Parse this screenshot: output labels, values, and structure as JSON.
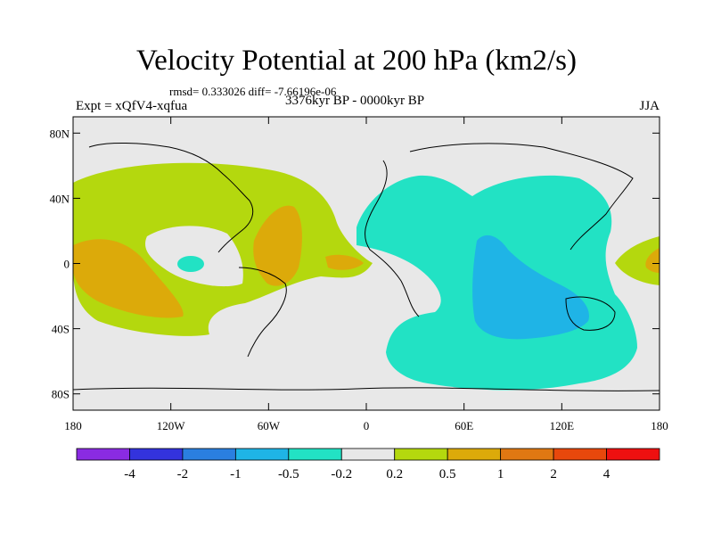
{
  "title": "Velocity Potential at 200 hPa (km2/s)",
  "subtitle_stats": "rmsd= 0.333026 diff= -7.66196e-06",
  "left_label": "Expt = xQfV4-xqfua",
  "center_label": "3376kyr BP - 0000kyr BP",
  "right_label": "JJA",
  "lat_ticks": [
    {
      "label": "80N",
      "lat": 80
    },
    {
      "label": "40N",
      "lat": 40
    },
    {
      "label": "0",
      "lat": 0
    },
    {
      "label": "40S",
      "lat": -40
    },
    {
      "label": "80S",
      "lat": -80
    }
  ],
  "lon_ticks": [
    {
      "label": "180",
      "lon": -180
    },
    {
      "label": "120W",
      "lon": -120
    },
    {
      "label": "60W",
      "lon": -60
    },
    {
      "label": "0",
      "lon": 0
    },
    {
      "label": "60E",
      "lon": 60
    },
    {
      "label": "120E",
      "lon": 120
    },
    {
      "label": "180",
      "lon": 180
    }
  ],
  "colorbar": {
    "colors": [
      "#8a2be2",
      "#3333dd",
      "#2a7fe0",
      "#1fb4e6",
      "#22e2c4",
      "#e8e8e8",
      "#b4d80e",
      "#dcaa0a",
      "#e07812",
      "#e8480c",
      "#ee1010"
    ],
    "labels": [
      "-4",
      "-2",
      "-1",
      "-0.5",
      "-0.2",
      "0.2",
      "0.5",
      "1",
      "2",
      "4"
    ]
  },
  "map": {
    "background": "#e8e8e8",
    "lon_range": [
      -180,
      180
    ],
    "lat_range": [
      -90,
      90
    ]
  }
}
